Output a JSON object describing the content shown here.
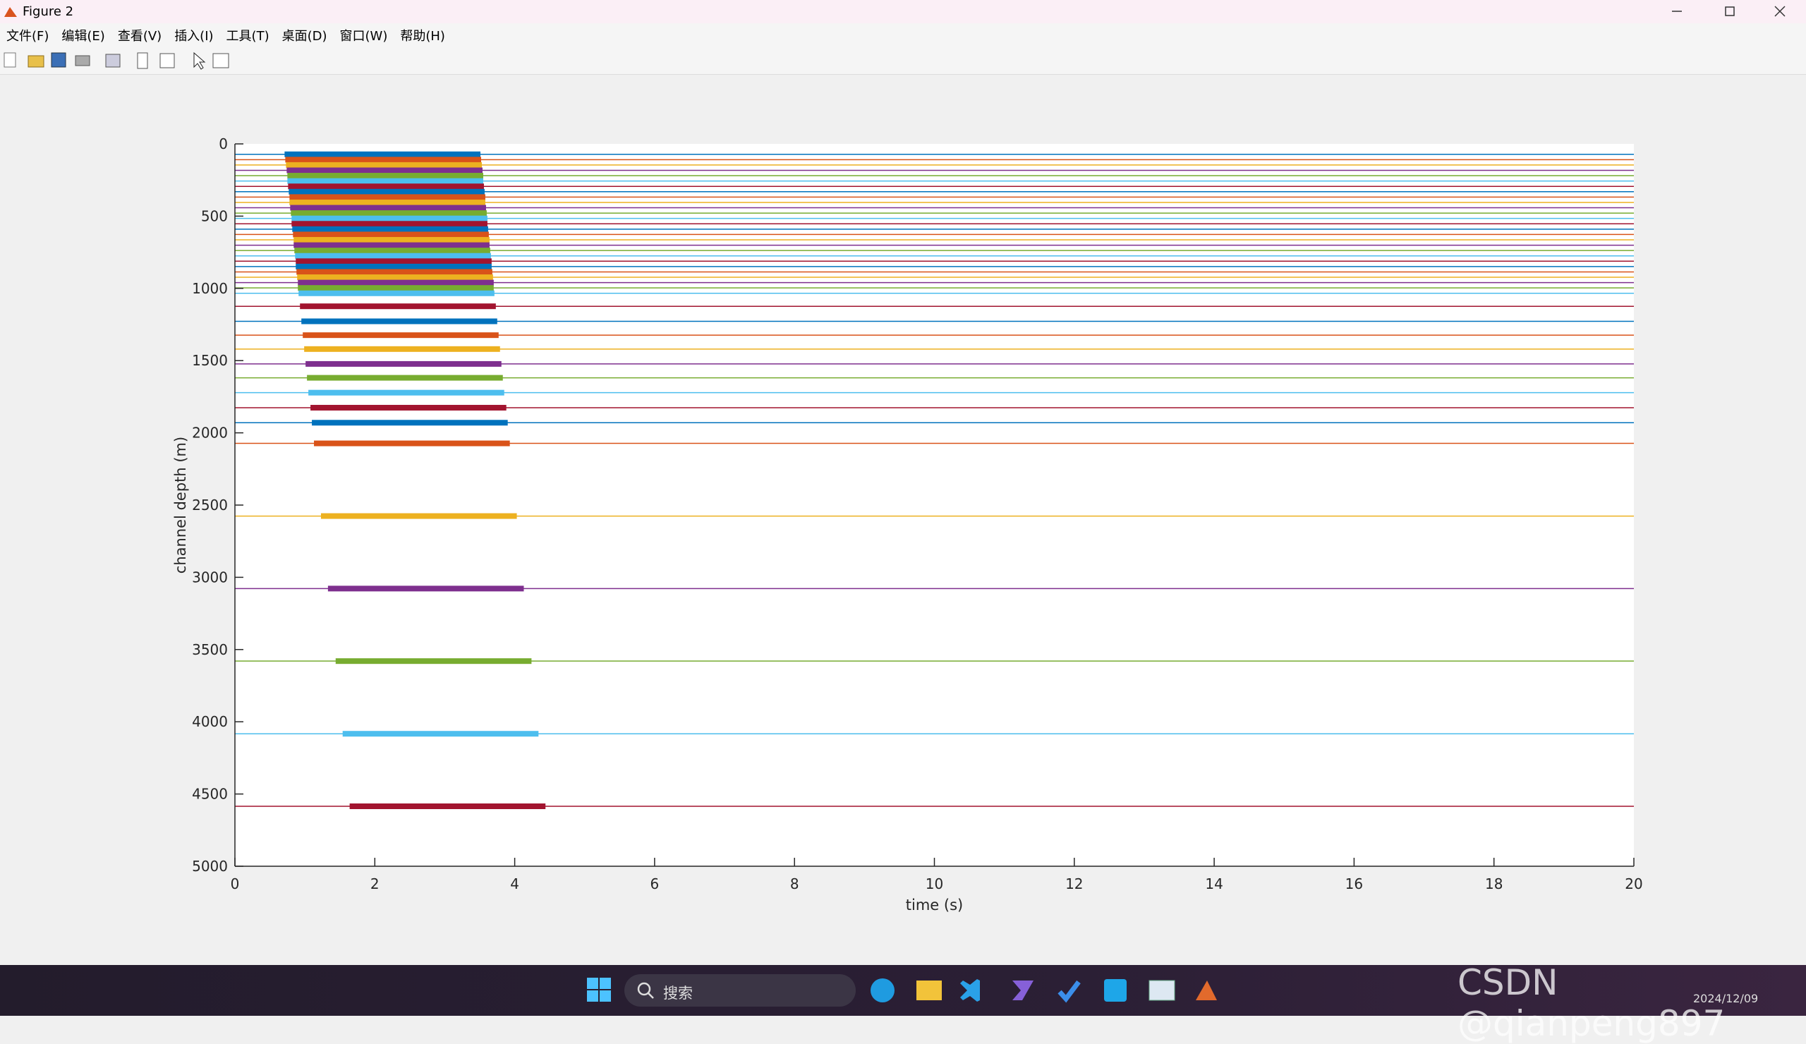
{
  "window": {
    "title": "Figure 2"
  },
  "menu": [
    "文件(F)",
    "编辑(E)",
    "查看(V)",
    "插入(I)",
    "工具(T)",
    "桌面(D)",
    "窗口(W)",
    "帮助(H)"
  ],
  "chart_data": {
    "type": "wiggle",
    "xlabel": "time (s)",
    "ylabel": "channel depth (m)",
    "xlim": [
      0,
      20
    ],
    "xticks": [
      0,
      2,
      4,
      6,
      8,
      10,
      12,
      14,
      16,
      18,
      20
    ],
    "ylim": [
      0,
      5000
    ],
    "yticks": [
      0,
      500,
      1000,
      1500,
      2000,
      2500,
      3000,
      3500,
      4000,
      4500,
      5000
    ],
    "y_reversed": true,
    "series": [
      {
        "color": "#0072BD",
        "depth": 72,
        "start": 0.71,
        "end": 3.51
      },
      {
        "color": "#D95319",
        "depth": 109,
        "start": 0.72,
        "end": 3.52
      },
      {
        "color": "#EDB120",
        "depth": 146,
        "start": 0.73,
        "end": 3.53
      },
      {
        "color": "#7E2F8E",
        "depth": 183,
        "start": 0.74,
        "end": 3.54
      },
      {
        "color": "#77AC30",
        "depth": 220,
        "start": 0.75,
        "end": 3.55
      },
      {
        "color": "#4DBEEE",
        "depth": 257,
        "start": 0.75,
        "end": 3.55
      },
      {
        "color": "#A2142F",
        "depth": 294,
        "start": 0.76,
        "end": 3.56
      },
      {
        "color": "#0072BD",
        "depth": 331,
        "start": 0.77,
        "end": 3.57
      },
      {
        "color": "#D95319",
        "depth": 368,
        "start": 0.78,
        "end": 3.58
      },
      {
        "color": "#EDB120",
        "depth": 405,
        "start": 0.78,
        "end": 3.58
      },
      {
        "color": "#7E2F8E",
        "depth": 442,
        "start": 0.79,
        "end": 3.59
      },
      {
        "color": "#77AC30",
        "depth": 479,
        "start": 0.8,
        "end": 3.6
      },
      {
        "color": "#4DBEEE",
        "depth": 516,
        "start": 0.81,
        "end": 3.61
      },
      {
        "color": "#A2142F",
        "depth": 553,
        "start": 0.81,
        "end": 3.61
      },
      {
        "color": "#0072BD",
        "depth": 590,
        "start": 0.82,
        "end": 3.62
      },
      {
        "color": "#D95319",
        "depth": 627,
        "start": 0.83,
        "end": 3.63
      },
      {
        "color": "#EDB120",
        "depth": 664,
        "start": 0.84,
        "end": 3.64
      },
      {
        "color": "#7E2F8E",
        "depth": 701,
        "start": 0.84,
        "end": 3.64
      },
      {
        "color": "#77AC30",
        "depth": 738,
        "start": 0.85,
        "end": 3.65
      },
      {
        "color": "#4DBEEE",
        "depth": 775,
        "start": 0.86,
        "end": 3.66
      },
      {
        "color": "#A2142F",
        "depth": 812,
        "start": 0.87,
        "end": 3.67
      },
      {
        "color": "#0072BD",
        "depth": 849,
        "start": 0.87,
        "end": 3.67
      },
      {
        "color": "#D95319",
        "depth": 886,
        "start": 0.88,
        "end": 3.68
      },
      {
        "color": "#EDB120",
        "depth": 923,
        "start": 0.89,
        "end": 3.69
      },
      {
        "color": "#7E2F8E",
        "depth": 960,
        "start": 0.9,
        "end": 3.7
      },
      {
        "color": "#77AC30",
        "depth": 997,
        "start": 0.9,
        "end": 3.7
      },
      {
        "color": "#4DBEEE",
        "depth": 1034,
        "start": 0.91,
        "end": 3.71
      },
      {
        "color": "#A2142F",
        "depth": 1124,
        "start": 0.93,
        "end": 3.73
      },
      {
        "color": "#0072BD",
        "depth": 1228,
        "start": 0.95,
        "end": 3.75
      },
      {
        "color": "#D95319",
        "depth": 1324,
        "start": 0.97,
        "end": 3.77
      },
      {
        "color": "#EDB120",
        "depth": 1420,
        "start": 0.99,
        "end": 3.79
      },
      {
        "color": "#7E2F8E",
        "depth": 1523,
        "start": 1.01,
        "end": 3.81
      },
      {
        "color": "#77AC30",
        "depth": 1619,
        "start": 1.03,
        "end": 3.83
      },
      {
        "color": "#4DBEEE",
        "depth": 1722,
        "start": 1.05,
        "end": 3.85
      },
      {
        "color": "#A2142F",
        "depth": 1826,
        "start": 1.08,
        "end": 3.88
      },
      {
        "color": "#0072BD",
        "depth": 1930,
        "start": 1.1,
        "end": 3.9
      },
      {
        "color": "#D95319",
        "depth": 2073,
        "start": 1.13,
        "end": 3.93
      },
      {
        "color": "#EDB120",
        "depth": 2576,
        "start": 1.23,
        "end": 4.03
      },
      {
        "color": "#7E2F8E",
        "depth": 3078,
        "start": 1.33,
        "end": 4.13
      },
      {
        "color": "#77AC30",
        "depth": 3580,
        "start": 1.44,
        "end": 4.24
      },
      {
        "color": "#4DBEEE",
        "depth": 4083,
        "start": 1.54,
        "end": 4.34
      },
      {
        "color": "#A2142F",
        "depth": 4585,
        "start": 1.64,
        "end": 4.44
      }
    ]
  },
  "taskbar": {
    "search": "搜索",
    "date": "2024/12/09"
  },
  "watermark": "CSDN @qianpeng897"
}
